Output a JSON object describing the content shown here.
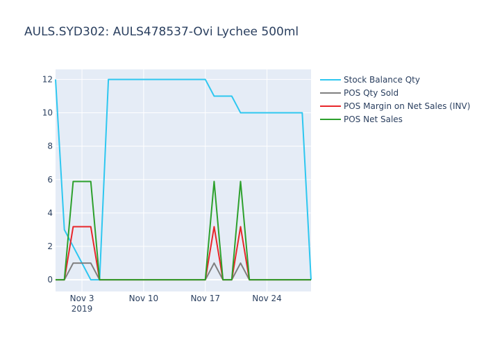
{
  "chart_data": {
    "type": "line",
    "title": "AULS.SYD302:  AULS478537-Ovi Lychee 500ml",
    "xlabel": "",
    "ylabel": "",
    "x_range": [
      "2019-10-31",
      "2019-11-29"
    ],
    "ylim": [
      -0.7,
      12.6
    ],
    "y_ticks": [
      0,
      2,
      4,
      6,
      8,
      10,
      12
    ],
    "x_ticks": [
      {
        "date": "2019-11-03",
        "label": "Nov 3",
        "sublabel": "2019"
      },
      {
        "date": "2019-11-10",
        "label": "Nov 10",
        "sublabel": ""
      },
      {
        "date": "2019-11-17",
        "label": "Nov 17",
        "sublabel": ""
      },
      {
        "date": "2019-11-24",
        "label": "Nov 24",
        "sublabel": ""
      }
    ],
    "grid": true,
    "legend_position": "top-right",
    "series": [
      {
        "name": "Stock Balance Qty",
        "color": "#2ec7f0",
        "x": [
          "2019-10-31",
          "2019-11-01",
          "2019-11-02",
          "2019-11-03",
          "2019-11-04",
          "2019-11-05",
          "2019-11-06",
          "2019-11-07",
          "2019-11-08",
          "2019-11-09",
          "2019-11-10",
          "2019-11-11",
          "2019-11-12",
          "2019-11-13",
          "2019-11-14",
          "2019-11-15",
          "2019-11-16",
          "2019-11-17",
          "2019-11-18",
          "2019-11-19",
          "2019-11-20",
          "2019-11-21",
          "2019-11-22",
          "2019-11-23",
          "2019-11-24",
          "2019-11-25",
          "2019-11-26",
          "2019-11-27",
          "2019-11-28",
          "2019-11-29"
        ],
        "y": [
          12,
          3,
          2,
          1,
          0,
          0,
          12,
          12,
          12,
          12,
          12,
          12,
          12,
          12,
          12,
          12,
          12,
          12,
          11,
          11,
          11,
          10,
          10,
          10,
          10,
          10,
          10,
          10,
          10,
          0
        ]
      },
      {
        "name": "POS Qty Sold",
        "color": "#7f7f7f",
        "x": [
          "2019-10-31",
          "2019-11-01",
          "2019-11-02",
          "2019-11-03",
          "2019-11-04",
          "2019-11-05",
          "2019-11-06",
          "2019-11-07",
          "2019-11-08",
          "2019-11-09",
          "2019-11-10",
          "2019-11-11",
          "2019-11-12",
          "2019-11-13",
          "2019-11-14",
          "2019-11-15",
          "2019-11-16",
          "2019-11-17",
          "2019-11-18",
          "2019-11-19",
          "2019-11-20",
          "2019-11-21",
          "2019-11-22",
          "2019-11-23",
          "2019-11-24",
          "2019-11-25",
          "2019-11-26",
          "2019-11-27",
          "2019-11-28",
          "2019-11-29"
        ],
        "y": [
          0,
          0,
          1,
          1,
          1,
          0,
          0,
          0,
          0,
          0,
          0,
          0,
          0,
          0,
          0,
          0,
          0,
          0,
          1,
          0,
          0,
          1,
          0,
          0,
          0,
          0,
          0,
          0,
          0,
          0
        ]
      },
      {
        "name": "POS Margin on Net Sales (INV)",
        "color": "#e8262a",
        "x": [
          "2019-10-31",
          "2019-11-01",
          "2019-11-02",
          "2019-11-03",
          "2019-11-04",
          "2019-11-05",
          "2019-11-06",
          "2019-11-07",
          "2019-11-08",
          "2019-11-09",
          "2019-11-10",
          "2019-11-11",
          "2019-11-12",
          "2019-11-13",
          "2019-11-14",
          "2019-11-15",
          "2019-11-16",
          "2019-11-17",
          "2019-11-18",
          "2019-11-19",
          "2019-11-20",
          "2019-11-21",
          "2019-11-22",
          "2019-11-23",
          "2019-11-24",
          "2019-11-25",
          "2019-11-26",
          "2019-11-27",
          "2019-11-28",
          "2019-11-29"
        ],
        "y": [
          0,
          0,
          3.18,
          3.18,
          3.18,
          0,
          0,
          0,
          0,
          0,
          0,
          0,
          0,
          0,
          0,
          0,
          0,
          0,
          3.18,
          0,
          0,
          3.18,
          0,
          0,
          0,
          0,
          0,
          0,
          0,
          0
        ]
      },
      {
        "name": "POS Net Sales",
        "color": "#2ca02c",
        "x": [
          "2019-10-31",
          "2019-11-01",
          "2019-11-02",
          "2019-11-03",
          "2019-11-04",
          "2019-11-05",
          "2019-11-06",
          "2019-11-07",
          "2019-11-08",
          "2019-11-09",
          "2019-11-10",
          "2019-11-11",
          "2019-11-12",
          "2019-11-13",
          "2019-11-14",
          "2019-11-15",
          "2019-11-16",
          "2019-11-17",
          "2019-11-18",
          "2019-11-19",
          "2019-11-20",
          "2019-11-21",
          "2019-11-22",
          "2019-11-23",
          "2019-11-24",
          "2019-11-25",
          "2019-11-26",
          "2019-11-27",
          "2019-11-28",
          "2019-11-29"
        ],
        "y": [
          0,
          0,
          5.89,
          5.89,
          5.89,
          0,
          0,
          0,
          0,
          0,
          0,
          0,
          0,
          0,
          0,
          0,
          0,
          0,
          5.89,
          0,
          0,
          5.89,
          0,
          0,
          0,
          0,
          0,
          0,
          0,
          0
        ]
      }
    ],
    "colors": {
      "plot_bg": "#e5ecf6",
      "grid": "#ffffff",
      "text": "#2a3f5f"
    }
  }
}
